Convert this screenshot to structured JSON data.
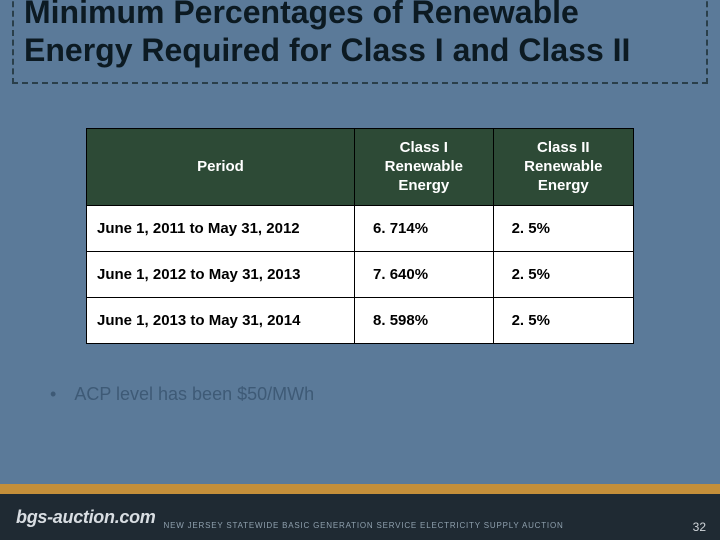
{
  "title": "Minimum Percentages of Renewable Energy Required for Class I and Class II",
  "table": {
    "headers": {
      "period": "Period",
      "c1": "Class I Renewable Energy",
      "c2": "Class II Renewable Energy"
    },
    "rows": [
      {
        "period": "June 1, 2011 to May 31, 2012",
        "c1": "6. 714%",
        "c2": "2. 5%"
      },
      {
        "period": "June 1, 2012 to May 31, 2013",
        "c1": "7. 640%",
        "c2": "2. 5%"
      },
      {
        "period": "June 1, 2013 to May 31, 2014",
        "c1": "8. 598%",
        "c2": "2. 5%"
      }
    ]
  },
  "bullet": "ACP level has been $50/MWh",
  "footer": {
    "brand": "bgs-auction.com",
    "tag": "NEW JERSEY STATEWIDE BASIC GENERATION SERVICE ELECTRICITY SUPPLY AUCTION"
  },
  "page": "32",
  "colors": {
    "background": "#5b7a99",
    "header_bg": "#2d4a36",
    "footer_bg": "#1f2a33",
    "stripe": "#c48f3a",
    "bullet_text": "#3e5a76"
  }
}
